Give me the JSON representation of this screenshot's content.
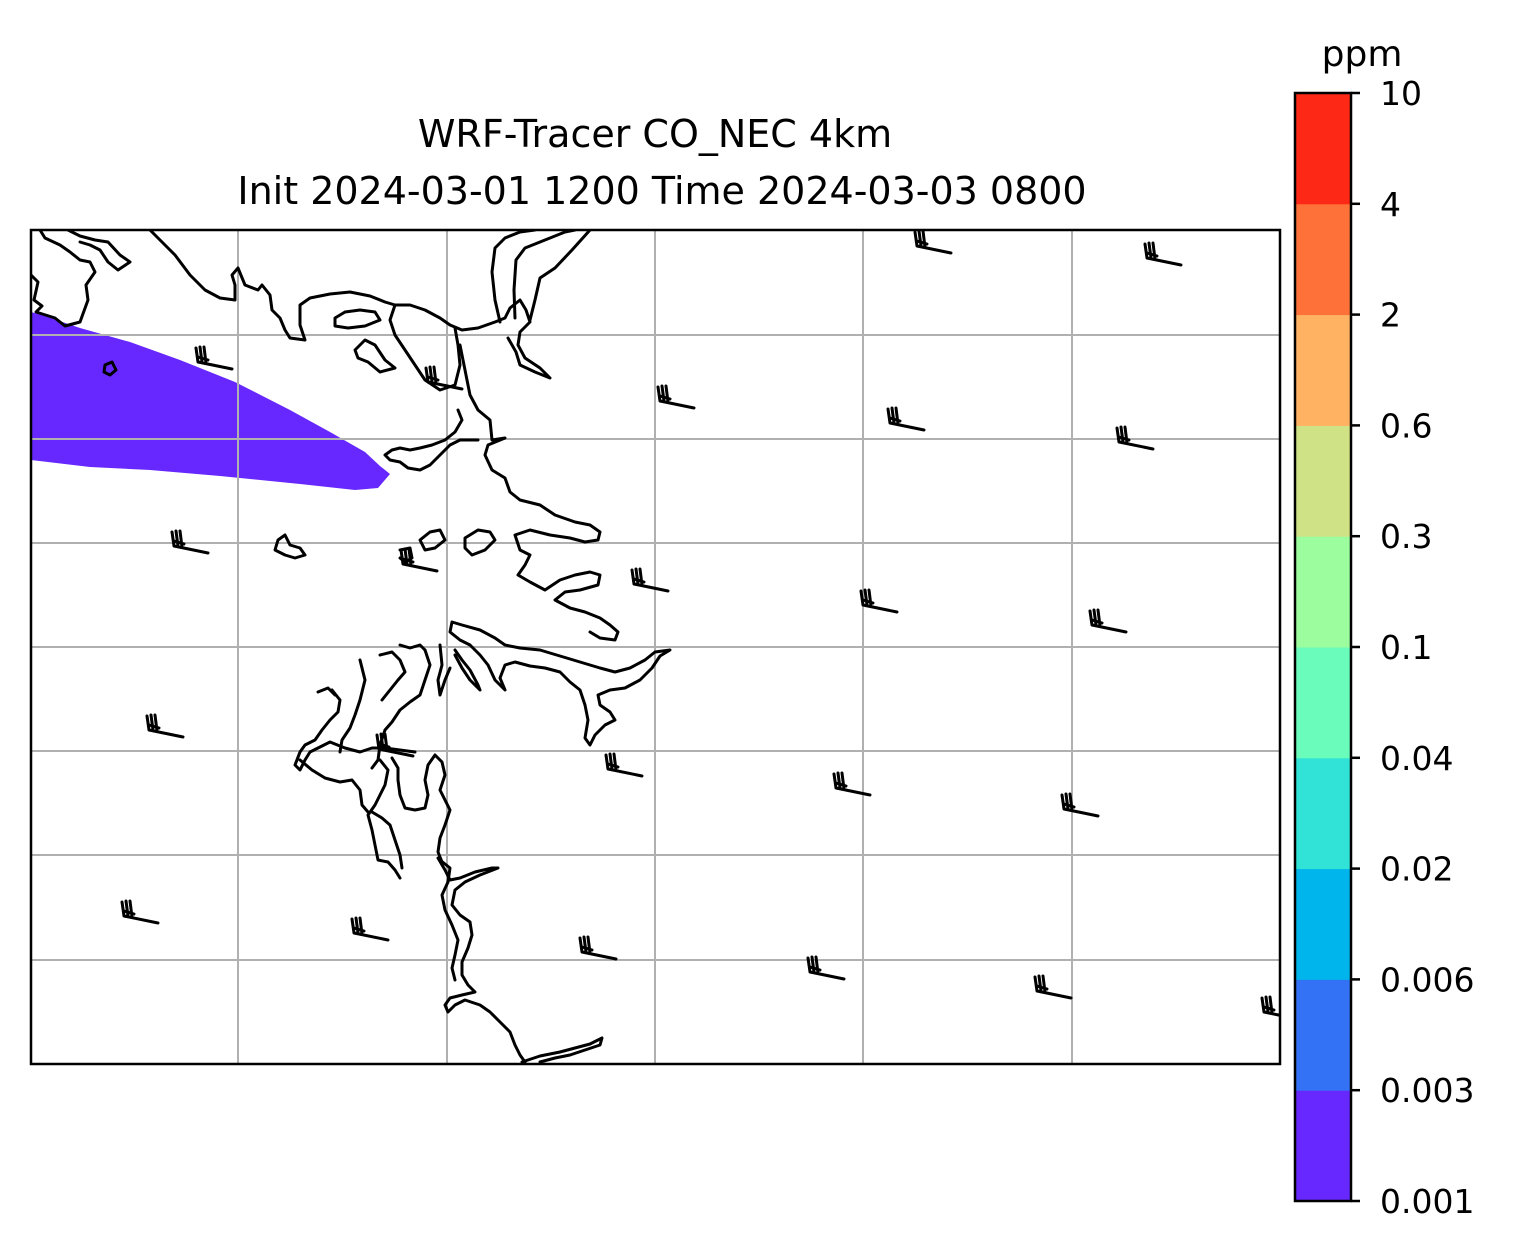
{
  "title_line1": "WRF-Tracer CO_NEC 4km",
  "title_line2": "Init 2024-03-01 1200 Time 2024-03-03 0800",
  "colorbar": {
    "unit": "ppm",
    "levels": [
      "0.001",
      "0.003",
      "0.006",
      "0.02",
      "0.04",
      "0.1",
      "0.3",
      "0.6",
      "2",
      "4",
      "10"
    ],
    "colors": [
      "#6628fe",
      "#3472f5",
      "#00b4ec",
      "#31e2d6",
      "#6afcbb",
      "#9cfd9e",
      "#d0e286",
      "#feb262",
      "#fe723a",
      "#fe2816"
    ]
  },
  "map": {
    "variable": "CO_NEC",
    "plume_color": "#6628fe",
    "plume_level": "0.001–0.003 ppm",
    "gridlines": true,
    "wind_barbs": true
  }
}
